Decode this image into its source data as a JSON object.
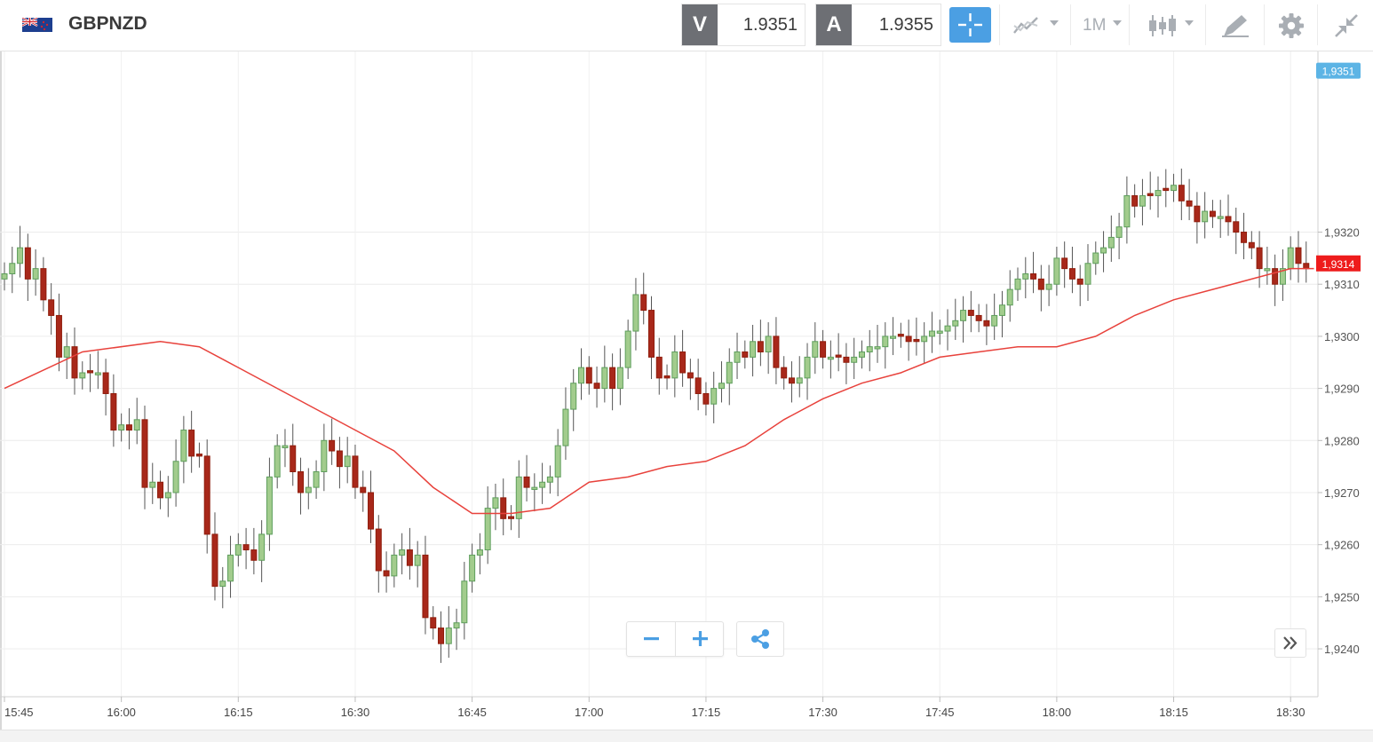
{
  "header": {
    "symbol": "GBPNZD",
    "sell_label": "V",
    "sell_price": "1.9351",
    "buy_label": "A",
    "buy_price": "1.9355",
    "timeframe": "1M"
  },
  "icons": {
    "flag": "gb-nz-flag-icon",
    "crosshair": "crosshair-icon",
    "indicators": "line-chart-icon",
    "chart_type": "candlestick-icon",
    "draw": "draw-tool-icon",
    "settings": "gear-icon",
    "collapse": "collapse-icon",
    "zoom_out": "minus-icon",
    "zoom_in": "plus-icon",
    "share": "share-icon",
    "scroll": "double-chevron-right-icon"
  },
  "colors": {
    "bull": "#5e9e5c",
    "bull_fill": "#a2cc8d",
    "bear": "#8f1d0c",
    "bear_fill": "#a8281a",
    "ma_line": "#e8423c",
    "last_price_tag": "#ee1c1c",
    "sell_price_tag": "#5cb4e5",
    "accent": "#4b9fe3"
  },
  "chart_data": {
    "type": "candlestick",
    "interval": "1m",
    "ylim": [
      1.9232,
      1.9354
    ],
    "yticks": [
      1.924,
      1.925,
      1.926,
      1.927,
      1.928,
      1.929,
      1.93,
      1.931,
      1.932
    ],
    "ytick_labels": [
      "1,9240",
      "1,9250",
      "1,9260",
      "1,9270",
      "1,9280",
      "1,9290",
      "1,9300",
      "1,9310",
      "1,9320"
    ],
    "x_labels": [
      "15:45",
      "16:00",
      "16:15",
      "16:30",
      "16:45",
      "17:00",
      "17:15",
      "17:30",
      "17:45",
      "18:00",
      "18:15",
      "18:30"
    ],
    "start_time": "15:45",
    "last_price": 1.9314,
    "last_price_label": "1,9314",
    "sell_price_line": 1.9351,
    "sell_price_label": "1,9351",
    "closes": [
      1.9312,
      1.9314,
      1.9317,
      1.9311,
      1.9313,
      1.9307,
      1.9304,
      1.9296,
      1.9298,
      1.9292,
      1.9293,
      1.9293,
      1.9293,
      1.9289,
      1.9282,
      1.9283,
      1.9282,
      1.9284,
      1.9271,
      1.9272,
      1.9269,
      1.927,
      1.9276,
      1.9282,
      1.9277,
      1.9277,
      1.9262,
      1.9252,
      1.9253,
      1.9258,
      1.926,
      1.9259,
      1.9257,
      1.9262,
      1.9273,
      1.9279,
      1.9279,
      1.9274,
      1.927,
      1.9271,
      1.9274,
      1.928,
      1.9278,
      1.9275,
      1.9277,
      1.9271,
      1.927,
      1.9263,
      1.9255,
      1.9254,
      1.9258,
      1.9259,
      1.9256,
      1.9258,
      1.9246,
      1.9244,
      1.9241,
      1.9244,
      1.9245,
      1.9253,
      1.9258,
      1.9259,
      1.9267,
      1.9269,
      1.9265,
      1.9265,
      1.9273,
      1.9271,
      1.9271,
      1.9272,
      1.9273,
      1.9279,
      1.9286,
      1.9291,
      1.9294,
      1.9291,
      1.929,
      1.9294,
      1.929,
      1.9294,
      1.9301,
      1.9308,
      1.9305,
      1.9296,
      1.9292,
      1.9292,
      1.9297,
      1.9293,
      1.9292,
      1.9289,
      1.9287,
      1.929,
      1.9291,
      1.9295,
      1.9297,
      1.9296,
      1.9299,
      1.9297,
      1.93,
      1.9294,
      1.9292,
      1.9291,
      1.9292,
      1.9296,
      1.9299,
      1.9296,
      1.9296,
      1.9296,
      1.9295,
      1.9296,
      1.9297,
      1.9298,
      1.9298,
      1.93,
      1.93,
      1.93,
      1.9299,
      1.9299,
      1.93,
      1.9301,
      1.9301,
      1.9302,
      1.9303,
      1.9305,
      1.9304,
      1.9303,
      1.9302,
      1.9304,
      1.9306,
      1.9309,
      1.9311,
      1.9312,
      1.9311,
      1.9309,
      1.931,
      1.9315,
      1.9313,
      1.9311,
      1.931,
      1.9314,
      1.9316,
      1.9317,
      1.9319,
      1.9321,
      1.9327,
      1.9325,
      1.9327,
      1.9327,
      1.9328,
      1.9328,
      1.9329,
      1.9326,
      1.9325,
      1.9322,
      1.9324,
      1.9323,
      1.9323,
      1.9322,
      1.932,
      1.9318,
      1.9317,
      1.9313,
      1.9313,
      1.931,
      1.9313,
      1.9317,
      1.9314,
      1.9313
    ],
    "ma_line": [
      [
        0,
        1.929
      ],
      [
        10,
        1.9297
      ],
      [
        20,
        1.9299
      ],
      [
        25,
        1.9298
      ],
      [
        30,
        1.9294
      ],
      [
        40,
        1.9286
      ],
      [
        50,
        1.9278
      ],
      [
        55,
        1.9271
      ],
      [
        60,
        1.9266
      ],
      [
        65,
        1.9266
      ],
      [
        70,
        1.9267
      ],
      [
        75,
        1.9272
      ],
      [
        80,
        1.9273
      ],
      [
        85,
        1.9275
      ],
      [
        90,
        1.9276
      ],
      [
        95,
        1.9279
      ],
      [
        100,
        1.9284
      ],
      [
        105,
        1.9288
      ],
      [
        110,
        1.9291
      ],
      [
        115,
        1.9293
      ],
      [
        120,
        1.9296
      ],
      [
        125,
        1.9297
      ],
      [
        130,
        1.9298
      ],
      [
        135,
        1.9298
      ],
      [
        140,
        1.93
      ],
      [
        145,
        1.9304
      ],
      [
        150,
        1.9307
      ],
      [
        155,
        1.9309
      ],
      [
        160,
        1.9311
      ],
      [
        165,
        1.9313
      ],
      [
        168,
        1.9313
      ]
    ]
  }
}
